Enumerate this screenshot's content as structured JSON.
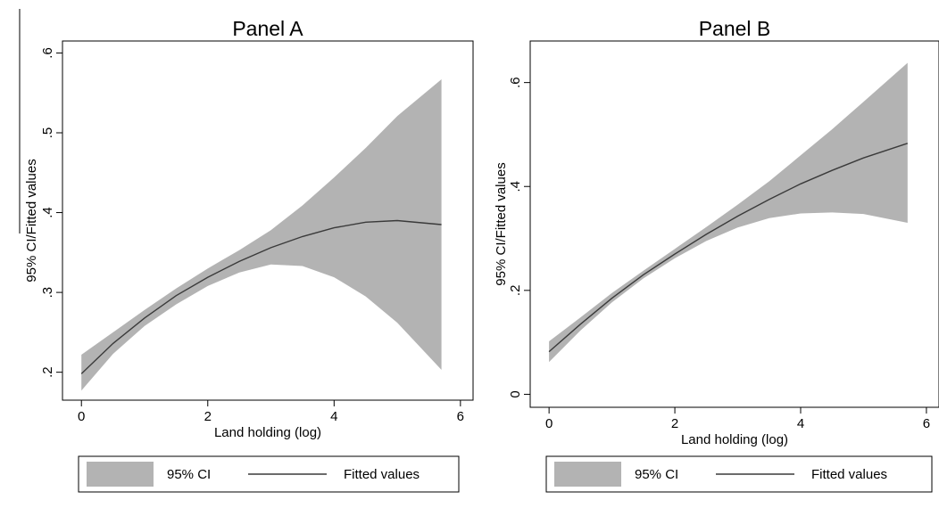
{
  "colors": {
    "ci_band": "#b3b3b3",
    "fit_line": "#3a3a3a",
    "axis": "#000000",
    "background": "#ffffff"
  },
  "chart_data": [
    {
      "type": "area",
      "title": "Panel A",
      "xlabel": "Land holding (log)",
      "ylabel": "95% CI/Fitted values",
      "xlim": [
        -0.3,
        6.2
      ],
      "ylim": [
        0.165,
        0.615
      ],
      "xticks": [
        0,
        2,
        4,
        6
      ],
      "xtick_labels": [
        "0",
        "2",
        "4",
        "6"
      ],
      "yticks": [
        0.2,
        0.3,
        0.4,
        0.5,
        0.6
      ],
      "ytick_labels": [
        ".2",
        ".3",
        ".4",
        ".5",
        ".6"
      ],
      "grid": false,
      "legend_position": "bottom",
      "legend": [
        "95% CI",
        "Fitted values"
      ],
      "x": [
        0,
        0.5,
        1,
        1.5,
        2,
        2.5,
        3,
        3.5,
        4,
        4.5,
        5,
        5.7
      ],
      "series": [
        {
          "name": "Fitted values",
          "values": [
            0.198,
            0.236,
            0.268,
            0.296,
            0.319,
            0.339,
            0.356,
            0.37,
            0.381,
            0.388,
            0.39,
            0.385
          ]
        },
        {
          "name": "95% CI",
          "lower": [
            0.177,
            0.223,
            0.258,
            0.285,
            0.308,
            0.325,
            0.335,
            0.333,
            0.319,
            0.295,
            0.262,
            0.203
          ],
          "upper": [
            0.222,
            0.25,
            0.278,
            0.305,
            0.33,
            0.353,
            0.378,
            0.409,
            0.444,
            0.481,
            0.521,
            0.567
          ]
        }
      ]
    },
    {
      "type": "area",
      "title": "Panel B",
      "xlabel": "Land holding (log)",
      "ylabel": "95% CI/Fitted values",
      "xlim": [
        -0.3,
        6.2
      ],
      "ylim": [
        -0.025,
        0.68
      ],
      "xticks": [
        0,
        2,
        4,
        6
      ],
      "xtick_labels": [
        "0",
        "2",
        "4",
        "6"
      ],
      "yticks": [
        0,
        0.2,
        0.4,
        0.6
      ],
      "ytick_labels": [
        "0",
        ".2",
        ".4",
        ".6"
      ],
      "grid": false,
      "legend_position": "bottom",
      "legend": [
        "95% CI",
        "Fitted values"
      ],
      "x": [
        0,
        0.5,
        1,
        1.5,
        2,
        2.5,
        3,
        3.5,
        4,
        4.5,
        5,
        5.7
      ],
      "series": [
        {
          "name": "Fitted values",
          "values": [
            0.082,
            0.135,
            0.185,
            0.23,
            0.27,
            0.308,
            0.343,
            0.375,
            0.405,
            0.431,
            0.455,
            0.483
          ]
        },
        {
          "name": "95% CI",
          "lower": [
            0.062,
            0.123,
            0.177,
            0.223,
            0.262,
            0.295,
            0.321,
            0.339,
            0.348,
            0.35,
            0.347,
            0.33
          ],
          "upper": [
            0.102,
            0.148,
            0.195,
            0.238,
            0.28,
            0.322,
            0.365,
            0.41,
            0.46,
            0.51,
            0.563,
            0.638
          ]
        }
      ]
    }
  ]
}
